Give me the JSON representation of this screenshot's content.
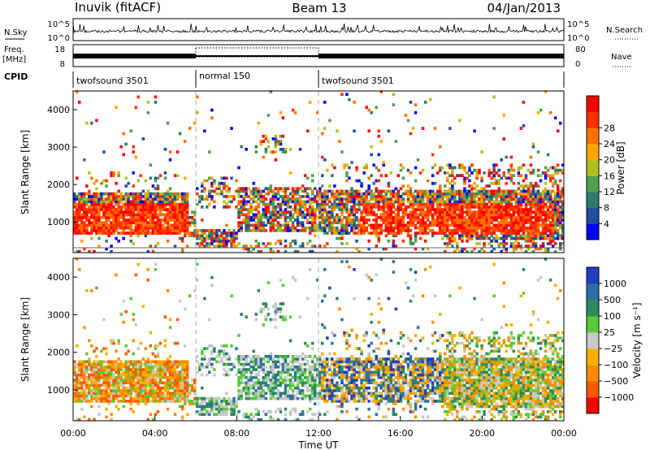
{
  "header": {
    "title_left": "Inuvik (fitACF)",
    "title_center": "Beam 13",
    "title_right": "04/Jan/2013"
  },
  "side_labels": {
    "nsky": "N.Sky",
    "freq": "Freq.",
    "mhz": "[MHz]",
    "cpid": "CPID",
    "nsearch": "N.Search",
    "nave": "Nave"
  },
  "cpid_segments": [
    {
      "label": "twofsound 3501",
      "start_hour": 0,
      "end_hour": 6
    },
    {
      "label": "normal 150",
      "start_hour": 6,
      "end_hour": 12
    },
    {
      "label": "twofsound 3501",
      "start_hour": 12,
      "end_hour": 24
    }
  ],
  "colors": {
    "power": [
      "#0000ff",
      "#1f4fa0",
      "#2e7a6e",
      "#4fa04f",
      "#b0c020",
      "#ffa500",
      "#ff7000",
      "#ff3000",
      "#ff0000"
    ],
    "velocity": [
      "#ff0000",
      "#ff5a00",
      "#ff8c00",
      "#f7b000",
      "#c8c8c8",
      "#55cc33",
      "#2e8b57",
      "#2f6fa8",
      "#1f3fbf"
    ]
  },
  "chart_data": [
    {
      "type": "line",
      "panel": "noise",
      "x_range": [
        0,
        24
      ],
      "left_axis": {
        "label": "N.Sky",
        "ticks": [
          "10^5",
          "10^0"
        ]
      },
      "right_axis": {
        "label": "N.Search",
        "ticks": [
          "10^5",
          "10^0"
        ]
      }
    },
    {
      "type": "line",
      "panel": "frequency",
      "x_range": [
        0,
        24
      ],
      "left_axis": {
        "label": "Freq. [MHz]",
        "ticks": [
          "18",
          "8"
        ]
      },
      "right_axis": {
        "label": "Nave",
        "ticks": [
          "80",
          "0"
        ]
      },
      "dotted_box": {
        "start_hour": 6,
        "end_hour": 12
      }
    },
    {
      "type": "heatmap",
      "panel": "power",
      "xlabel": "",
      "ylabel": "Slant Range [km]",
      "x_range": [
        0,
        24
      ],
      "ylim": [
        180,
        4500
      ],
      "y_ticks": [
        1000,
        2000,
        3000,
        4000
      ],
      "colorbar": {
        "label": "Power [dB]",
        "ticks": [
          "4",
          "8",
          "12",
          "16",
          "20",
          "24",
          "28"
        ],
        "range": [
          0,
          32
        ]
      },
      "dashed_lines_hours": [
        6,
        12
      ]
    },
    {
      "type": "heatmap",
      "panel": "velocity",
      "xlabel": "Time UT",
      "ylabel": "Slant Range [km]",
      "x_range": [
        0,
        24
      ],
      "ylim": [
        180,
        4500
      ],
      "x_ticks": [
        "00:00",
        "04:00",
        "08:00",
        "12:00",
        "16:00",
        "20:00",
        "00:00"
      ],
      "y_ticks": [
        1000,
        2000,
        3000,
        4000
      ],
      "colorbar": {
        "label": "Velocity [m s⁻¹]",
        "ticks": [
          "1000",
          "500",
          "100",
          "25",
          "−25",
          "−100",
          "−500",
          "−1000"
        ]
      },
      "dashed_lines_hours": [
        6,
        12
      ]
    }
  ]
}
